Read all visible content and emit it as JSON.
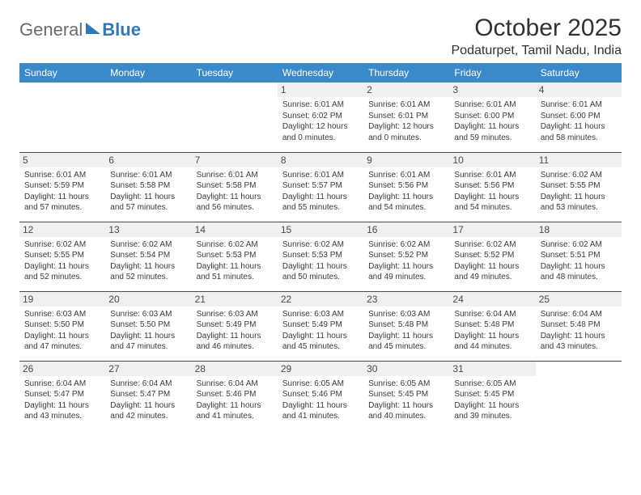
{
  "logo": {
    "text1": "General",
    "text2": "Blue"
  },
  "title": "October 2025",
  "location": "Podaturpet, Tamil Nadu, India",
  "colors": {
    "header_bg": "#3a89c9",
    "header_fg": "#ffffff",
    "daynum_bg": "#eef0f2",
    "border": "#4a4a4a",
    "text": "#323232"
  },
  "weekdays": [
    "Sunday",
    "Monday",
    "Tuesday",
    "Wednesday",
    "Thursday",
    "Friday",
    "Saturday"
  ],
  "weeks": [
    [
      null,
      null,
      null,
      {
        "n": "1",
        "sr": "6:01 AM",
        "ss": "6:02 PM",
        "dl": "12 hours and 0 minutes."
      },
      {
        "n": "2",
        "sr": "6:01 AM",
        "ss": "6:01 PM",
        "dl": "12 hours and 0 minutes."
      },
      {
        "n": "3",
        "sr": "6:01 AM",
        "ss": "6:00 PM",
        "dl": "11 hours and 59 minutes."
      },
      {
        "n": "4",
        "sr": "6:01 AM",
        "ss": "6:00 PM",
        "dl": "11 hours and 58 minutes."
      }
    ],
    [
      {
        "n": "5",
        "sr": "6:01 AM",
        "ss": "5:59 PM",
        "dl": "11 hours and 57 minutes."
      },
      {
        "n": "6",
        "sr": "6:01 AM",
        "ss": "5:58 PM",
        "dl": "11 hours and 57 minutes."
      },
      {
        "n": "7",
        "sr": "6:01 AM",
        "ss": "5:58 PM",
        "dl": "11 hours and 56 minutes."
      },
      {
        "n": "8",
        "sr": "6:01 AM",
        "ss": "5:57 PM",
        "dl": "11 hours and 55 minutes."
      },
      {
        "n": "9",
        "sr": "6:01 AM",
        "ss": "5:56 PM",
        "dl": "11 hours and 54 minutes."
      },
      {
        "n": "10",
        "sr": "6:01 AM",
        "ss": "5:56 PM",
        "dl": "11 hours and 54 minutes."
      },
      {
        "n": "11",
        "sr": "6:02 AM",
        "ss": "5:55 PM",
        "dl": "11 hours and 53 minutes."
      }
    ],
    [
      {
        "n": "12",
        "sr": "6:02 AM",
        "ss": "5:55 PM",
        "dl": "11 hours and 52 minutes."
      },
      {
        "n": "13",
        "sr": "6:02 AM",
        "ss": "5:54 PM",
        "dl": "11 hours and 52 minutes."
      },
      {
        "n": "14",
        "sr": "6:02 AM",
        "ss": "5:53 PM",
        "dl": "11 hours and 51 minutes."
      },
      {
        "n": "15",
        "sr": "6:02 AM",
        "ss": "5:53 PM",
        "dl": "11 hours and 50 minutes."
      },
      {
        "n": "16",
        "sr": "6:02 AM",
        "ss": "5:52 PM",
        "dl": "11 hours and 49 minutes."
      },
      {
        "n": "17",
        "sr": "6:02 AM",
        "ss": "5:52 PM",
        "dl": "11 hours and 49 minutes."
      },
      {
        "n": "18",
        "sr": "6:02 AM",
        "ss": "5:51 PM",
        "dl": "11 hours and 48 minutes."
      }
    ],
    [
      {
        "n": "19",
        "sr": "6:03 AM",
        "ss": "5:50 PM",
        "dl": "11 hours and 47 minutes."
      },
      {
        "n": "20",
        "sr": "6:03 AM",
        "ss": "5:50 PM",
        "dl": "11 hours and 47 minutes."
      },
      {
        "n": "21",
        "sr": "6:03 AM",
        "ss": "5:49 PM",
        "dl": "11 hours and 46 minutes."
      },
      {
        "n": "22",
        "sr": "6:03 AM",
        "ss": "5:49 PM",
        "dl": "11 hours and 45 minutes."
      },
      {
        "n": "23",
        "sr": "6:03 AM",
        "ss": "5:48 PM",
        "dl": "11 hours and 45 minutes."
      },
      {
        "n": "24",
        "sr": "6:04 AM",
        "ss": "5:48 PM",
        "dl": "11 hours and 44 minutes."
      },
      {
        "n": "25",
        "sr": "6:04 AM",
        "ss": "5:48 PM",
        "dl": "11 hours and 43 minutes."
      }
    ],
    [
      {
        "n": "26",
        "sr": "6:04 AM",
        "ss": "5:47 PM",
        "dl": "11 hours and 43 minutes."
      },
      {
        "n": "27",
        "sr": "6:04 AM",
        "ss": "5:47 PM",
        "dl": "11 hours and 42 minutes."
      },
      {
        "n": "28",
        "sr": "6:04 AM",
        "ss": "5:46 PM",
        "dl": "11 hours and 41 minutes."
      },
      {
        "n": "29",
        "sr": "6:05 AM",
        "ss": "5:46 PM",
        "dl": "11 hours and 41 minutes."
      },
      {
        "n": "30",
        "sr": "6:05 AM",
        "ss": "5:45 PM",
        "dl": "11 hours and 40 minutes."
      },
      {
        "n": "31",
        "sr": "6:05 AM",
        "ss": "5:45 PM",
        "dl": "11 hours and 39 minutes."
      },
      null
    ]
  ],
  "labels": {
    "sunrise": "Sunrise:",
    "sunset": "Sunset:",
    "daylight": "Daylight:"
  }
}
